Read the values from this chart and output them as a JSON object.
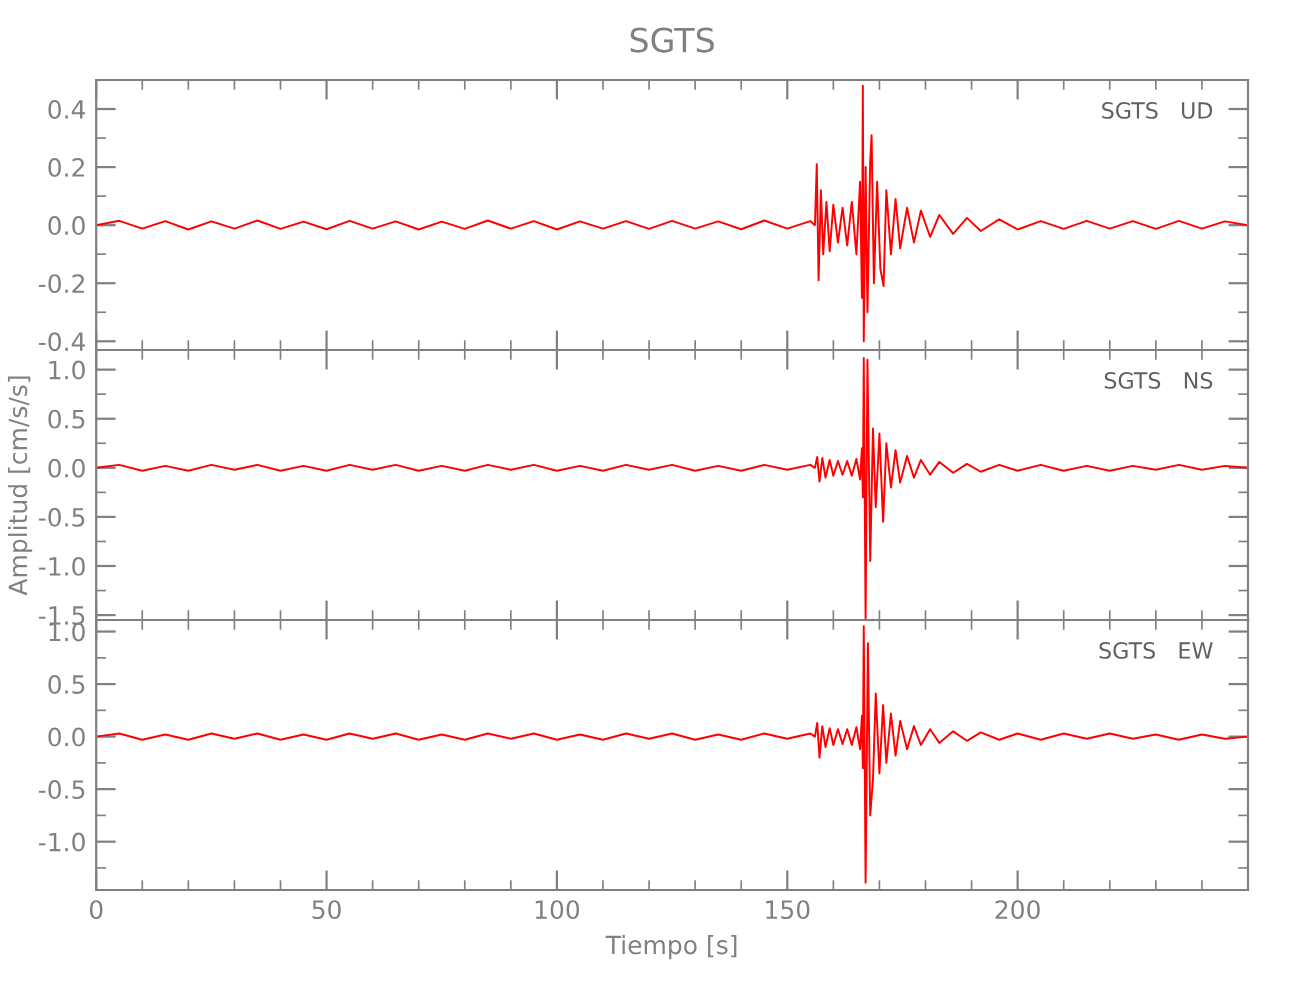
{
  "chart_data": [
    {
      "type": "line",
      "title": "SGTS",
      "annotations": [
        "SGTS   UD"
      ],
      "xlim": [
        0,
        250
      ],
      "xticks": [
        0,
        50,
        100,
        150,
        200
      ],
      "ylim": [
        -0.43,
        0.5
      ],
      "yticks": [
        0.4,
        0.2,
        {
          "value": 0,
          "label": "0.0"
        },
        -0.2,
        -0.4
      ],
      "tick_labels": "y",
      "grid": false,
      "legend": false,
      "series": [
        {
          "color": "#ff0000",
          "x": [
            0,
            5,
            10,
            15,
            20,
            25,
            30,
            35,
            40,
            45,
            50,
            55,
            60,
            65,
            70,
            75,
            80,
            85,
            90,
            95,
            100,
            105,
            110,
            115,
            120,
            125,
            130,
            135,
            140,
            145,
            150,
            155,
            156.0,
            156.4,
            156.8,
            157.3,
            157.8,
            158.5,
            159.2,
            160,
            161,
            162,
            163,
            164,
            165,
            165.8,
            166.2,
            166.4,
            166.6,
            167.0,
            167.4,
            168.0,
            168.3,
            168.8,
            169.5,
            170.2,
            170.9,
            171.5,
            172.5,
            173.5,
            174.5,
            176,
            177.5,
            179,
            181,
            183,
            186,
            189,
            192,
            196,
            200,
            205,
            210,
            215,
            220,
            225,
            230,
            235,
            240,
            245,
            250
          ],
          "values": [
            0.0,
            0.015,
            -0.012,
            0.014,
            -0.015,
            0.013,
            -0.012,
            0.016,
            -0.013,
            0.012,
            -0.014,
            0.015,
            -0.012,
            0.013,
            -0.015,
            0.012,
            -0.013,
            0.016,
            -0.012,
            0.014,
            -0.015,
            0.013,
            -0.012,
            0.014,
            -0.013,
            0.015,
            -0.012,
            0.013,
            -0.014,
            0.016,
            -0.012,
            0.014,
            0.0,
            0.21,
            -0.19,
            0.12,
            -0.1,
            0.08,
            -0.09,
            0.07,
            -0.06,
            0.06,
            -0.07,
            0.08,
            -0.1,
            0.15,
            -0.25,
            0.48,
            -0.4,
            0.2,
            -0.3,
            0.22,
            0.31,
            -0.2,
            0.15,
            -0.15,
            -0.21,
            0.12,
            -0.1,
            0.09,
            -0.08,
            0.06,
            -0.06,
            0.05,
            -0.04,
            0.035,
            -0.03,
            0.025,
            -0.02,
            0.02,
            -0.015,
            0.014,
            -0.013,
            0.015,
            -0.012,
            0.014,
            -0.013,
            0.015,
            -0.012,
            0.013,
            0.0
          ]
        }
      ]
    },
    {
      "type": "line",
      "ylabel": "Amplitud [cm/s/s]",
      "annotations": [
        "SGTS   NS"
      ],
      "xlim": [
        0,
        250
      ],
      "xticks": [
        0,
        50,
        100,
        150,
        200
      ],
      "ylim": [
        -1.55,
        1.2
      ],
      "yticks": [
        {
          "value": 1,
          "label": "1.0"
        },
        0.5,
        {
          "value": 0,
          "label": "0.0"
        },
        -0.5,
        {
          "value": -1,
          "label": "-1.0"
        },
        -1.5
      ],
      "tick_labels": "y",
      "grid": false,
      "legend": false,
      "series": [
        {
          "color": "#ff0000",
          "x": [
            0,
            5,
            10,
            15,
            20,
            25,
            30,
            35,
            40,
            45,
            50,
            55,
            60,
            65,
            70,
            75,
            80,
            85,
            90,
            95,
            100,
            105,
            110,
            115,
            120,
            125,
            130,
            135,
            140,
            145,
            150,
            155,
            156.0,
            156.5,
            157.0,
            157.6,
            158.3,
            159.2,
            160,
            161,
            162,
            163,
            164,
            165,
            165.8,
            166.2,
            166.4,
            166.6,
            167.0,
            167.4,
            168.0,
            168.6,
            169.2,
            170.0,
            170.8,
            171.5,
            172.5,
            173.5,
            174.5,
            176,
            177.5,
            179,
            181,
            183,
            186,
            189,
            192,
            196,
            200,
            205,
            210,
            215,
            220,
            225,
            230,
            235,
            240,
            245,
            250
          ],
          "values": [
            0.0,
            0.03,
            -0.03,
            0.02,
            -0.03,
            0.03,
            -0.02,
            0.03,
            -0.03,
            0.02,
            -0.03,
            0.03,
            -0.02,
            0.03,
            -0.03,
            0.02,
            -0.03,
            0.03,
            -0.02,
            0.03,
            -0.03,
            0.02,
            -0.03,
            0.03,
            -0.02,
            0.03,
            -0.03,
            0.02,
            -0.03,
            0.03,
            -0.02,
            0.03,
            0.0,
            0.11,
            -0.14,
            0.1,
            -0.1,
            0.08,
            -0.08,
            0.07,
            -0.07,
            0.07,
            -0.08,
            0.09,
            -0.12,
            0.2,
            -0.3,
            1.12,
            -1.54,
            1.1,
            -0.95,
            0.4,
            -0.4,
            0.35,
            -0.55,
            0.25,
            -0.2,
            0.18,
            -0.15,
            0.12,
            -0.1,
            0.08,
            -0.07,
            0.06,
            -0.05,
            0.04,
            -0.04,
            0.03,
            -0.03,
            0.03,
            -0.03,
            0.02,
            -0.03,
            0.02,
            -0.02,
            0.03,
            -0.02,
            0.02,
            0.0
          ]
        }
      ]
    },
    {
      "type": "line",
      "xlabel": "Tiempo [s]",
      "annotations": [
        "SGTS   EW"
      ],
      "xlim": [
        0,
        250
      ],
      "xticks": [
        0,
        50,
        100,
        150,
        200
      ],
      "ylim": [
        -1.46,
        1.11
      ],
      "yticks": [
        {
          "value": 1,
          "label": "1.0"
        },
        0.5,
        {
          "value": 0,
          "label": "0.0"
        },
        -0.5,
        {
          "value": -1,
          "label": "-1.0"
        }
      ],
      "grid": false,
      "legend": false,
      "series": [
        {
          "color": "#ff0000",
          "x": [
            0,
            5,
            10,
            15,
            20,
            25,
            30,
            35,
            40,
            45,
            50,
            55,
            60,
            65,
            70,
            75,
            80,
            85,
            90,
            95,
            100,
            105,
            110,
            115,
            120,
            125,
            130,
            135,
            140,
            145,
            150,
            155,
            156.0,
            156.5,
            157.0,
            157.6,
            158.3,
            159.2,
            160,
            161,
            162,
            163,
            164,
            165,
            165.8,
            166.2,
            166.4,
            166.6,
            167.0,
            167.5,
            168.0,
            168.6,
            169.2,
            170.0,
            170.8,
            171.5,
            172.5,
            173.5,
            174.5,
            176,
            177.5,
            179,
            181,
            183,
            186,
            189,
            192,
            196,
            200,
            205,
            210,
            215,
            220,
            225,
            230,
            235,
            240,
            245,
            250
          ],
          "values": [
            0.0,
            0.03,
            -0.03,
            0.02,
            -0.03,
            0.03,
            -0.02,
            0.03,
            -0.03,
            0.02,
            -0.03,
            0.03,
            -0.02,
            0.03,
            -0.03,
            0.02,
            -0.03,
            0.03,
            -0.02,
            0.03,
            -0.03,
            0.02,
            -0.03,
            0.03,
            -0.02,
            0.03,
            -0.03,
            0.02,
            -0.03,
            0.03,
            -0.02,
            0.03,
            0.0,
            0.13,
            -0.2,
            0.1,
            -0.1,
            0.08,
            -0.08,
            0.07,
            -0.07,
            0.07,
            -0.08,
            0.09,
            -0.12,
            0.2,
            -0.3,
            1.05,
            -1.39,
            0.89,
            -0.75,
            -0.41,
            0.41,
            -0.35,
            0.3,
            -0.25,
            0.22,
            -0.18,
            0.15,
            -0.12,
            0.1,
            -0.08,
            0.07,
            -0.06,
            0.05,
            -0.04,
            0.04,
            -0.03,
            0.03,
            -0.03,
            0.03,
            -0.02,
            0.03,
            -0.02,
            0.02,
            -0.03,
            0.02,
            -0.02,
            0.0
          ]
        }
      ]
    }
  ]
}
